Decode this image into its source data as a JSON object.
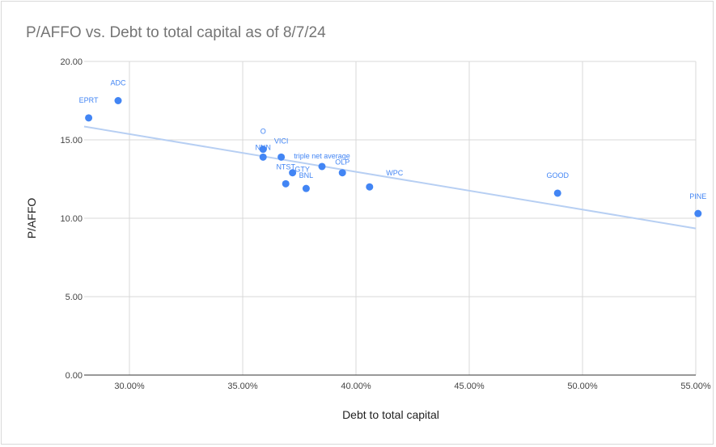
{
  "title": "P/AFFO vs. Debt to total capital as of 8/7/24",
  "colors": {
    "point": "#4285f4",
    "trendline": "#b7cff3",
    "grid": "#d9d9d9",
    "axis": "#333333"
  },
  "chart_data": {
    "type": "scatter",
    "title": "P/AFFO vs. Debt to total capital as of 8/7/24",
    "xlabel": "Debt to total capital",
    "ylabel": "P/AFFO",
    "xlim": [
      0.28,
      0.55
    ],
    "ylim": [
      0,
      20
    ],
    "x_ticks": [
      0.3,
      0.35,
      0.4,
      0.45,
      0.5,
      0.55
    ],
    "x_tick_labels": [
      "30.00%",
      "35.00%",
      "40.00%",
      "45.00%",
      "50.00%",
      "55.00%"
    ],
    "y_ticks": [
      0,
      5,
      10,
      15,
      20
    ],
    "y_tick_labels": [
      "0.00",
      "5.00",
      "10.00",
      "15.00",
      "20.00"
    ],
    "grid": true,
    "points": [
      {
        "label": "EPRT",
        "x": 0.282,
        "y": 16.4
      },
      {
        "label": "ADC",
        "x": 0.295,
        "y": 17.5
      },
      {
        "label": "O",
        "x": 0.359,
        "y": 14.4
      },
      {
        "label": "NNN",
        "x": 0.359,
        "y": 13.9
      },
      {
        "label": "VICI",
        "x": 0.367,
        "y": 13.9
      },
      {
        "label": "GTY",
        "x": 0.372,
        "y": 12.9
      },
      {
        "label": "NTST",
        "x": 0.369,
        "y": 12.2
      },
      {
        "label": "BNL",
        "x": 0.378,
        "y": 11.9
      },
      {
        "label": "triple net average",
        "x": 0.385,
        "y": 13.3
      },
      {
        "label": "OLP",
        "x": 0.394,
        "y": 12.9
      },
      {
        "label": "WPC",
        "x": 0.406,
        "y": 12.0
      },
      {
        "label": "GOOD",
        "x": 0.489,
        "y": 11.6
      },
      {
        "label": "PINE",
        "x": 0.551,
        "y": 10.3
      }
    ],
    "trendline": {
      "type": "linear",
      "from": {
        "x": 0.28,
        "y": 15.85
      },
      "to": {
        "x": 0.55,
        "y": 9.35
      }
    }
  }
}
